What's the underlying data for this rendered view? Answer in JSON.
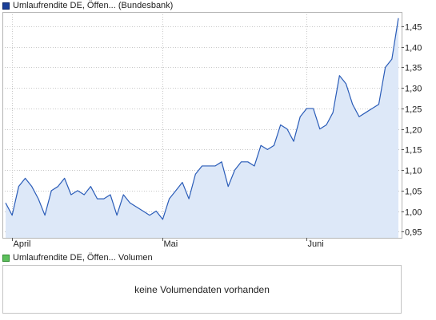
{
  "legend": {
    "price_label": "Umlaufrendite DE, Öffen... (Bundesbank)",
    "volume_label": "Umlaufrendite DE, Öffen... Volumen",
    "price_color": "#1a3f99",
    "volume_color": "#5cc05c"
  },
  "volume_panel": {
    "message": "keine Volumendaten vorhanden"
  },
  "colors": {
    "line": "#2a5cb8",
    "fill": "#dde8f8",
    "grid": "#c8c8c8",
    "frame": "#b4b4b4"
  },
  "chart_data": {
    "type": "area",
    "x_tick_labels": [
      "April",
      "Mai",
      "Juni"
    ],
    "y_tick_labels": [
      "1,45",
      "1,40",
      "1,35",
      "1,30",
      "1,25",
      "1,20",
      "1,15",
      "1,10",
      "1,05",
      "1,00",
      "0,95"
    ],
    "y_ticks": [
      1.45,
      1.4,
      1.35,
      1.3,
      1.25,
      1.2,
      1.15,
      1.1,
      1.05,
      1.0,
      0.95
    ],
    "ylim": [
      0.935,
      1.485
    ],
    "grid": true,
    "legend_position": "top-left",
    "series": [
      {
        "values": [
          1.02,
          0.99,
          1.06,
          1.08,
          1.06,
          1.03,
          0.99,
          1.05,
          1.06,
          1.08,
          1.04,
          1.05,
          1.04,
          1.06,
          1.03,
          1.03,
          1.04,
          0.99,
          1.04,
          1.02,
          1.01,
          1.0,
          0.99,
          1.0,
          0.98,
          1.03,
          1.05,
          1.07,
          1.03,
          1.09,
          1.11,
          1.11,
          1.11,
          1.12,
          1.06,
          1.1,
          1.12,
          1.12,
          1.11,
          1.16,
          1.15,
          1.16,
          1.21,
          1.2,
          1.17,
          1.23,
          1.25,
          1.25,
          1.2,
          1.21,
          1.24,
          1.33,
          1.31,
          1.26,
          1.23,
          1.24,
          1.25,
          1.26,
          1.35,
          1.37,
          1.47
        ]
      }
    ],
    "x_tick_indices": [
      1,
      24,
      46
    ]
  }
}
